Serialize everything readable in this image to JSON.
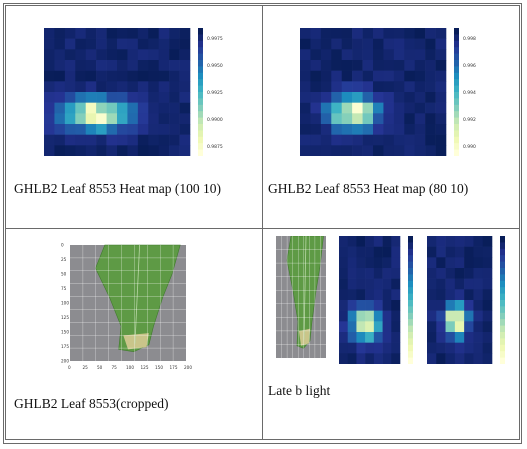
{
  "captions": {
    "top_left": "GHLB2 Leaf 8553 Heat map (100 10)",
    "top_right": "GHLB2 Leaf 8553 Heat map (80 10)",
    "bottom_left": "GHLB2 Leaf 8553(cropped)",
    "bottom_right": "Late b light"
  },
  "colors": {
    "grid_border": "#6a6a6a",
    "heat_low": "#ffffd9",
    "heat_mid": "#41b6c4",
    "heat_high": "#081d58",
    "leaf": "#5e9a45"
  },
  "chart_data": [
    {
      "type": "heatmap",
      "id": "heatmap_100_10",
      "colorbar_ticks": [
        "0.9975",
        "0.9950",
        "0.9925",
        "0.9900",
        "0.9875"
      ],
      "cmap": "YlGnBu_r"
    },
    {
      "type": "heatmap",
      "id": "heatmap_80_10",
      "colorbar_ticks": [
        "0.998",
        "0.996",
        "0.994",
        "0.992",
        "0.990"
      ],
      "cmap": "YlGnBu_r"
    },
    {
      "type": "image",
      "id": "leaf_cropped",
      "x_ticks": [
        "0",
        "25",
        "50",
        "75",
        "100",
        "125",
        "150",
        "175",
        "200"
      ],
      "y_ticks": [
        "0",
        "25",
        "50",
        "75",
        "100",
        "125",
        "150",
        "175",
        "200"
      ]
    }
  ]
}
